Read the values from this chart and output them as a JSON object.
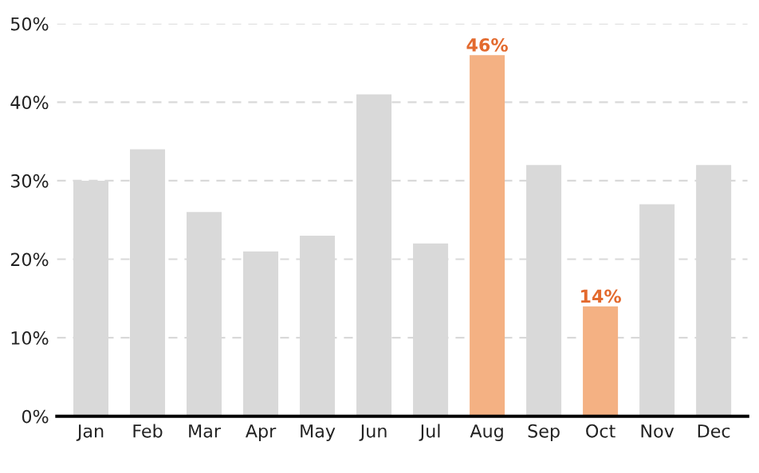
{
  "chart_data": {
    "type": "bar",
    "categories": [
      "Jan",
      "Feb",
      "Mar",
      "Apr",
      "May",
      "Jun",
      "Jul",
      "Aug",
      "Sep",
      "Oct",
      "Nov",
      "Dec"
    ],
    "values": [
      30,
      34,
      26,
      21,
      23,
      41,
      22,
      46,
      32,
      14,
      27,
      32
    ],
    "colors": [
      "#d9d9d9",
      "#d9d9d9",
      "#d9d9d9",
      "#d9d9d9",
      "#d9d9d9",
      "#d9d9d9",
      "#d9d9d9",
      "#f4b183",
      "#d9d9d9",
      "#f4b183",
      "#d9d9d9",
      "#d9d9d9"
    ],
    "value_labels": [
      null,
      null,
      null,
      null,
      null,
      null,
      null,
      "46%",
      null,
      "14%",
      null,
      null
    ],
    "ylim": [
      0,
      50
    ],
    "yticks": [
      {
        "value": 0,
        "label": "0%"
      },
      {
        "value": 10,
        "label": "10%"
      },
      {
        "value": 20,
        "label": "20%"
      },
      {
        "value": 30,
        "label": "30%"
      },
      {
        "value": 40,
        "label": "40%"
      },
      {
        "value": 50,
        "label": "50%"
      }
    ],
    "grid": "y"
  }
}
